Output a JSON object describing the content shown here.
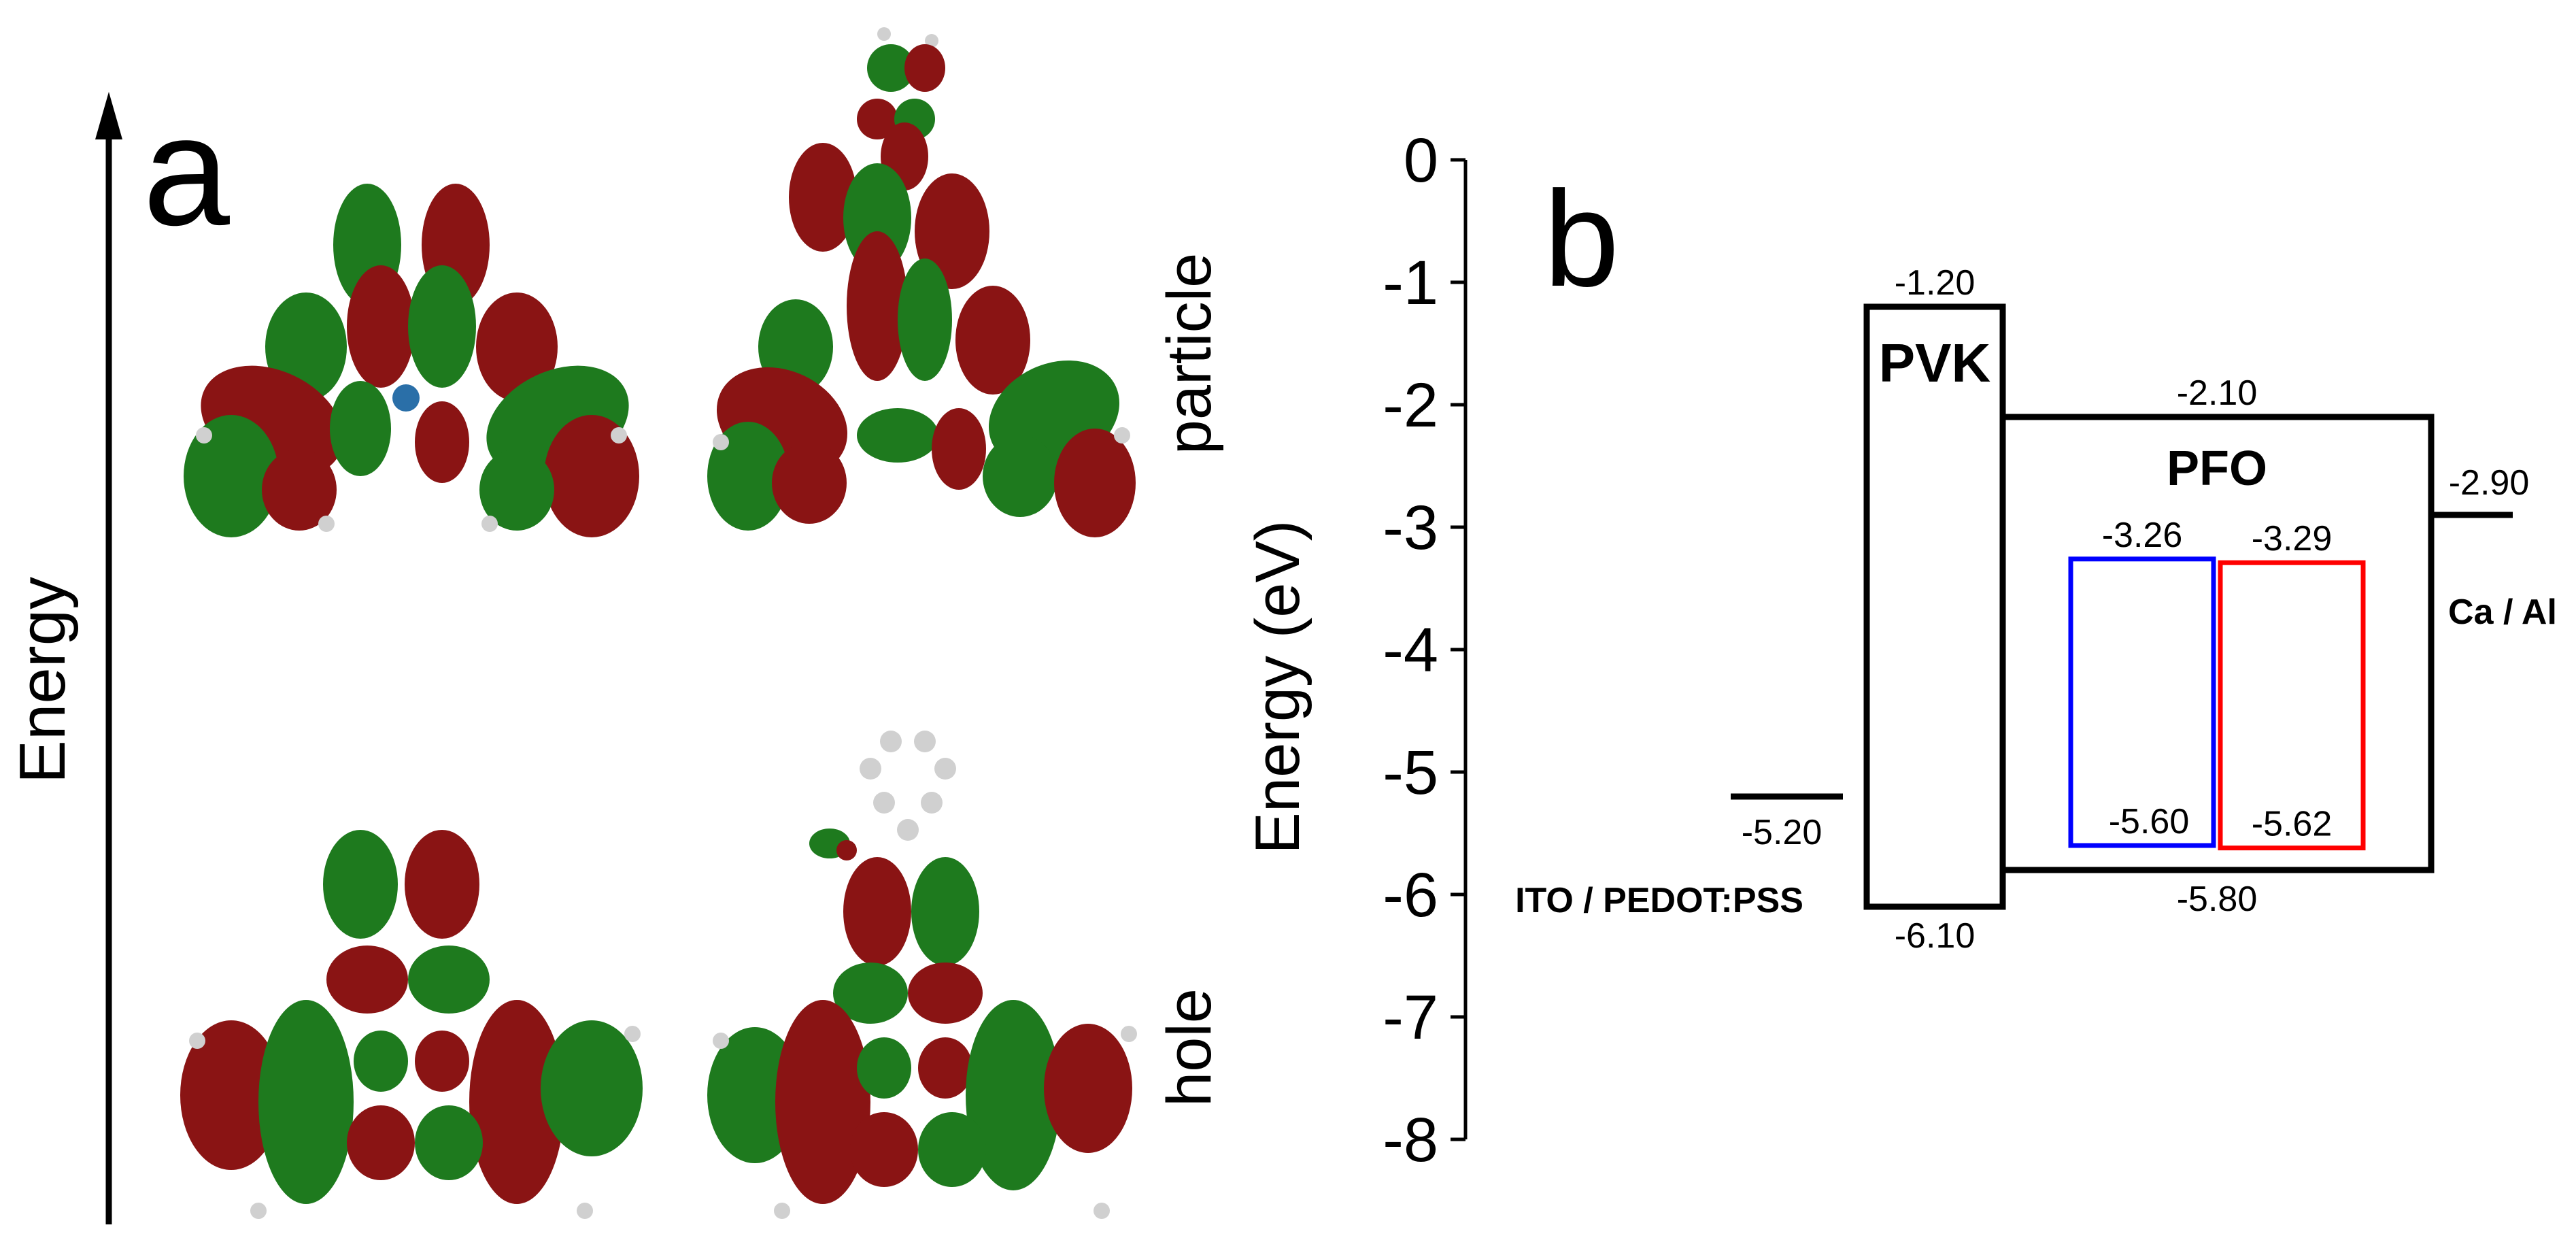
{
  "panel_a": {
    "letter": "a",
    "axis_label": "Energy",
    "row_labels": {
      "top": "particle",
      "bottom": "hole"
    },
    "colors": {
      "lobe_green": "#1e7a1e",
      "lobe_red": "#8a1414",
      "atom": "#d0d0d0",
      "metal": "#2a6fa8"
    }
  },
  "panel_b": {
    "letter": "b",
    "ylabel": "Energy (eV)",
    "yticks": [
      "0",
      "-1",
      "-2",
      "-3",
      "-4",
      "-5",
      "-6",
      "-7",
      "-8"
    ],
    "colors": {
      "pvk_label": "#9b30ff",
      "dopant_1": "#0000ff",
      "dopant_2": "#ff0000"
    },
    "levels": {
      "ito": {
        "value": -5.2,
        "text": "-5.20",
        "name": "ITO / PEDOT:PSS"
      },
      "pvk": {
        "lumo": -1.2,
        "homo": -6.1,
        "lumo_text": "-1.20",
        "homo_text": "-6.10",
        "name": "PVK"
      },
      "pfo": {
        "lumo": -2.1,
        "homo": -5.8,
        "lumo_text": "-2.10",
        "homo_text": "-5.80",
        "name": "PFO"
      },
      "dopant_blue": {
        "lumo": -3.26,
        "homo": -5.6,
        "lumo_text": "-3.26",
        "homo_text": "-5.60"
      },
      "dopant_red": {
        "lumo": -3.29,
        "homo": -5.62,
        "lumo_text": "-3.29",
        "homo_text": "-5.62"
      },
      "cathode": {
        "value": -2.9,
        "text": "-2.90",
        "name": "Ca / Al"
      }
    }
  }
}
